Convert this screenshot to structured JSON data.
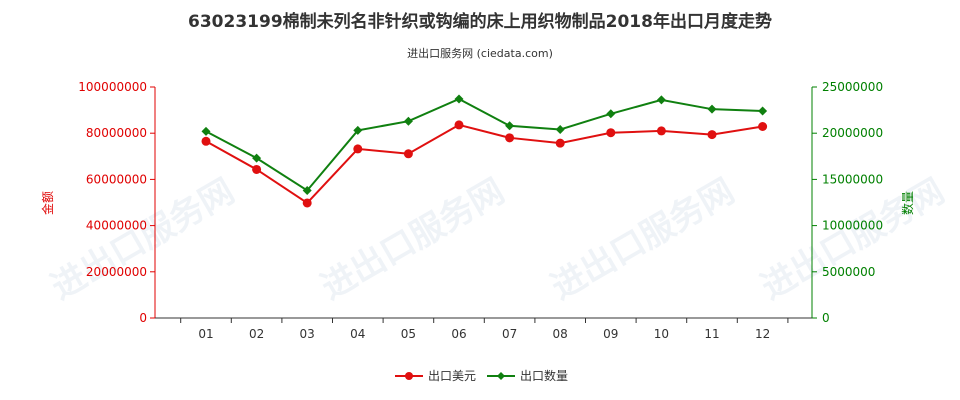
{
  "title": "63023199棉制未列名非针织或钩编的床上用织物制品2018年出口月度走势",
  "subtitle": "进出口服务网 (ciedata.com)",
  "watermark": "进出口服务网",
  "colors": {
    "left_axis": "#e00000",
    "right_axis": "#008000",
    "series_value": "#e01010",
    "series_qty": "#108010"
  },
  "chart_data": {
    "type": "line",
    "categories": [
      "01",
      "02",
      "03",
      "04",
      "05",
      "06",
      "07",
      "08",
      "09",
      "10",
      "11",
      "12"
    ],
    "y_left": {
      "label": "金额",
      "ylim": [
        0,
        100000000
      ],
      "ticks": [
        "0",
        "20000000",
        "40000000",
        "60000000",
        "80000000",
        "100000000"
      ]
    },
    "y_right": {
      "label": "数量",
      "ylim": [
        0,
        25000000
      ],
      "ticks": [
        "0",
        "5000000",
        "10000000",
        "15000000",
        "20000000",
        "25000000"
      ]
    },
    "series": [
      {
        "name": "出口美元",
        "axis": "left",
        "values": [
          76500000,
          64300000,
          49800000,
          73200000,
          71100000,
          83600000,
          78000000,
          75700000,
          80200000,
          81000000,
          79400000,
          82900000
        ]
      },
      {
        "name": "出口数量",
        "axis": "right",
        "values": [
          20200000,
          17300000,
          13800000,
          20300000,
          21300000,
          23700000,
          20800000,
          20400000,
          22100000,
          23600000,
          22600000,
          22400000
        ]
      }
    ],
    "grid": false,
    "legend": "bottom"
  }
}
